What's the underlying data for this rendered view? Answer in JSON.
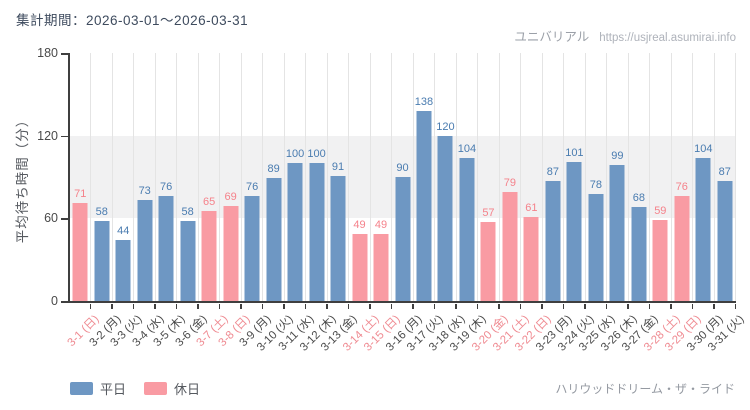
{
  "header": {
    "period_label": "集計期間：2026-03-01～2026-03-31",
    "brand": "ユニバリアル",
    "url": "https://usjreal.asumirai.info"
  },
  "chart_data": {
    "type": "bar",
    "title": "",
    "xlabel": "",
    "ylabel": "平均待ち時間（分）",
    "ylim": [
      0,
      180
    ],
    "yticks": [
      0,
      60,
      120,
      180
    ],
    "grid_band": {
      "from": 60,
      "to": 120
    },
    "legend_position": "bottom-left",
    "categories": [
      "3-1 (日)",
      "3-2 (月)",
      "3-3 (火)",
      "3-4 (水)",
      "3-5 (木)",
      "3-6 (金)",
      "3-7 (土)",
      "3-8 (日)",
      "3-9 (月)",
      "3-10 (火)",
      "3-11 (水)",
      "3-12 (木)",
      "3-13 (金)",
      "3-14 (土)",
      "3-15 (日)",
      "3-16 (月)",
      "3-17 (火)",
      "3-18 (水)",
      "3-19 (木)",
      "3-20 (金)",
      "3-21 (土)",
      "3-22 (日)",
      "3-23 (月)",
      "3-24 (火)",
      "3-25 (水)",
      "3-26 (木)",
      "3-27 (金)",
      "3-28 (土)",
      "3-29 (日)",
      "3-30 (月)",
      "3-31 (火)"
    ],
    "values": [
      71,
      58,
      44,
      73,
      76,
      58,
      65,
      69,
      76,
      89,
      100,
      100,
      91,
      49,
      49,
      90,
      138,
      120,
      104,
      57,
      79,
      61,
      87,
      101,
      78,
      99,
      68,
      59,
      76,
      104,
      87
    ],
    "day_types": [
      "holiday",
      "weekday",
      "weekday",
      "weekday",
      "weekday",
      "weekday",
      "holiday",
      "holiday",
      "weekday",
      "weekday",
      "weekday",
      "weekday",
      "weekday",
      "holiday",
      "holiday",
      "weekday",
      "weekday",
      "weekday",
      "weekday",
      "holiday",
      "holiday",
      "holiday",
      "weekday",
      "weekday",
      "weekday",
      "weekday",
      "weekday",
      "holiday",
      "holiday",
      "weekday",
      "weekday"
    ]
  },
  "legend": [
    {
      "label": "平日",
      "type": "weekday"
    },
    {
      "label": "休日",
      "type": "holiday"
    }
  ],
  "footer": {
    "ride_name": "ハリウッドドリーム・ザ・ライド"
  },
  "colors": {
    "weekday": {
      "bar": "#6e97c3",
      "value_label": "#4a7cb0",
      "axis_label": "#4a4a4a"
    },
    "holiday": {
      "bar": "#f99ba3",
      "value_label": "#f5828b",
      "axis_label": "#ef8a91"
    }
  }
}
